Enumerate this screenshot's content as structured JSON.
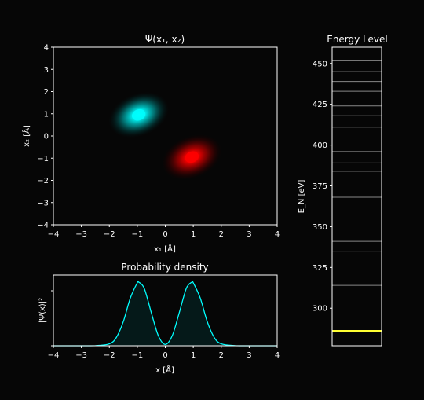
{
  "chart_data": [
    {
      "type": "heatmap",
      "title": "Ψ(x₁, x₂)",
      "xlabel": "x₁ [Å]",
      "ylabel": "x₂ [Å]",
      "xlim": [
        -4,
        4
      ],
      "ylim": [
        -4,
        4
      ],
      "xticks": [
        "−4",
        "−3",
        "−2",
        "−1",
        "0",
        "1",
        "2",
        "3",
        "4"
      ],
      "yticks": [
        "−4",
        "−3",
        "−2",
        "−1",
        "0",
        "1",
        "2",
        "3",
        "4"
      ],
      "peaks": [
        {
          "x": -0.95,
          "y": 0.95,
          "sign": "positive",
          "color": "#00ffff"
        },
        {
          "x": 0.95,
          "y": -0.95,
          "sign": "negative",
          "color": "#ff0000"
        }
      ],
      "grid": false
    },
    {
      "type": "line",
      "title": "Probability density",
      "xlabel": "x [Å]",
      "ylabel": "|Ψ(x)|²",
      "xlim": [
        -4,
        4
      ],
      "xticks": [
        "−4",
        "−3",
        "−2",
        "−1",
        "0",
        "1",
        "2",
        "3",
        "4"
      ],
      "line_color": "#00ffff",
      "x": [
        -4.0,
        -3.0,
        -2.5,
        -2.0,
        -1.75,
        -1.5,
        -1.25,
        -1.0,
        -0.95,
        -0.75,
        -0.5,
        -0.25,
        0.0,
        0.25,
        0.5,
        0.75,
        0.95,
        1.0,
        1.25,
        1.5,
        1.75,
        2.0,
        2.5,
        3.0,
        4.0
      ],
      "y": [
        0.0,
        0.0,
        0.002,
        0.03,
        0.13,
        0.38,
        0.75,
        0.99,
        1.0,
        0.9,
        0.52,
        0.16,
        0.02,
        0.16,
        0.52,
        0.9,
        1.0,
        0.99,
        0.75,
        0.38,
        0.13,
        0.03,
        0.002,
        0.0,
        0.0
      ],
      "grid": false
    },
    {
      "type": "line",
      "title": "Energy Level",
      "ylabel": "E_N [eV]",
      "ylim": [
        277,
        460
      ],
      "yticks": [
        300,
        325,
        350,
        375,
        400,
        425,
        450
      ],
      "ground_level": 286,
      "ground_color": "#ffff33",
      "levels": [
        314,
        335,
        341,
        362,
        368,
        384,
        389,
        396,
        411,
        418,
        424,
        433,
        439,
        445,
        452
      ],
      "level_color": "#888888"
    }
  ]
}
